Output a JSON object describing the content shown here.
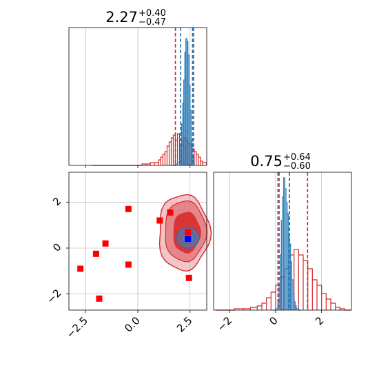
{
  "chart_data": {
    "type": "corner",
    "panels": [
      {
        "id": "param1-histogram",
        "type": "histogram",
        "title_main": "2.27",
        "title_plus": "+0.40",
        "title_minus": "−0.47",
        "xlim": [
          -3.3,
          3.3
        ],
        "quantiles_primary": [
          1.8,
          2.27,
          2.67
        ],
        "quantiles_secondary": [
          2.05,
          2.62
        ],
        "hist_primary": {
          "x": [
            1.7,
            1.8,
            1.9,
            2.0,
            2.05,
            2.1,
            2.15,
            2.2,
            2.25,
            2.3,
            2.35,
            2.4,
            2.45,
            2.5,
            2.55,
            2.6,
            2.65,
            2.7
          ],
          "y": [
            0.0,
            0.01,
            0.02,
            0.05,
            0.15,
            0.3,
            0.45,
            0.62,
            0.82,
            0.92,
            0.9,
            0.8,
            0.58,
            0.4,
            0.18,
            0.06,
            0.02,
            0.0
          ]
        },
        "hist_secondary": {
          "x": [
            -2.2,
            -1.9,
            -1.5,
            -1.1,
            -0.7,
            -0.3,
            0.2,
            0.4,
            0.6,
            0.8,
            1.0,
            1.1,
            1.2,
            1.3,
            1.4,
            1.5,
            1.6,
            1.7,
            1.8,
            1.9,
            2.0,
            2.1,
            2.2,
            2.3,
            2.4,
            2.5,
            2.6,
            2.7,
            2.8,
            2.9,
            3.0,
            3.1,
            3.3
          ],
          "y": [
            0.0,
            0.0,
            0.0,
            0.0,
            0.0,
            0.0,
            0.01,
            0.01,
            0.02,
            0.02,
            0.04,
            0.06,
            0.08,
            0.1,
            0.14,
            0.17,
            0.2,
            0.22,
            0.18,
            0.23,
            0.18,
            0.15,
            0.2,
            0.18,
            0.16,
            0.15,
            0.12,
            0.1,
            0.08,
            0.06,
            0.03,
            0.02,
            0.0
          ]
        }
      },
      {
        "id": "joint-2d",
        "type": "contour-scatter",
        "xlim": [
          -3.3,
          3.3
        ],
        "ylim": [
          -2.7,
          3.3
        ],
        "xticks": [
          -2.5,
          0.0,
          2.5
        ],
        "xtick_labels": [
          "−2.5",
          "0.0",
          "2.5"
        ],
        "yticks": [
          -2,
          0,
          2
        ],
        "ytick_labels": [
          "−2",
          "0",
          "2"
        ],
        "markers_red": [
          {
            "x": -2.75,
            "y": -0.9
          },
          {
            "x": -2.0,
            "y": -0.25
          },
          {
            "x": -1.55,
            "y": 0.2
          },
          {
            "x": -1.85,
            "y": -2.2
          },
          {
            "x": -0.45,
            "y": 1.7
          },
          {
            "x": -0.45,
            "y": -0.72
          },
          {
            "x": 1.05,
            "y": 1.2
          },
          {
            "x": 1.55,
            "y": 1.55
          },
          {
            "x": 2.4,
            "y": 0.7
          },
          {
            "x": 2.45,
            "y": -1.3
          }
        ],
        "marker_blue": {
          "x": 2.4,
          "y": 0.4
        },
        "contour_red_center": {
          "x": 2.2,
          "y": 0.8
        },
        "contour_blue_center": {
          "x": 2.4,
          "y": 0.45
        }
      },
      {
        "id": "param2-histogram",
        "type": "histogram",
        "title_main": "0.75",
        "title_plus": "+0.64",
        "title_minus": "−0.60",
        "xlim": [
          -2.7,
          3.3
        ],
        "xticks": [
          -2,
          0,
          2
        ],
        "xtick_labels": [
          "−2",
          "0",
          "2"
        ],
        "quantiles_primary": [
          0.15,
          0.75,
          1.39
        ],
        "quantiles_secondary": [
          0.1,
          0.6
        ],
        "hist_primary": {
          "x": [
            -0.1,
            0.0,
            0.1,
            0.15,
            0.2,
            0.25,
            0.3,
            0.35,
            0.4,
            0.45,
            0.5,
            0.55,
            0.6,
            0.65,
            0.7,
            0.75,
            0.8,
            0.85,
            0.9,
            1.0,
            1.1
          ],
          "y": [
            0.0,
            0.01,
            0.05,
            0.18,
            0.4,
            0.65,
            0.82,
            0.96,
            0.88,
            0.78,
            0.7,
            0.55,
            0.48,
            0.35,
            0.22,
            0.12,
            0.06,
            0.03,
            0.01,
            0.0,
            0.0
          ]
        },
        "hist_secondary": {
          "x": [
            -2.6,
            -2.2,
            -1.8,
            -1.4,
            -1.1,
            -0.8,
            -0.6,
            -0.4,
            -0.2,
            0.0,
            0.2,
            0.4,
            0.6,
            0.8,
            1.0,
            1.2,
            1.4,
            1.6,
            1.8,
            2.0,
            2.2,
            2.4,
            2.6,
            2.8,
            3.0,
            3.3
          ],
          "y": [
            0.0,
            0.0,
            0.01,
            0.01,
            0.02,
            0.03,
            0.05,
            0.09,
            0.13,
            0.18,
            0.24,
            0.3,
            0.4,
            0.44,
            0.4,
            0.36,
            0.3,
            0.22,
            0.18,
            0.12,
            0.08,
            0.05,
            0.02,
            0.01,
            0.0,
            0.0
          ]
        }
      }
    ],
    "grid": true,
    "colors": {
      "primary": "#1f77b4",
      "secondary": "#d62728",
      "marker": "#ff0000",
      "marker_blue": "#0000ff",
      "grid": "#b0b0b0"
    }
  }
}
